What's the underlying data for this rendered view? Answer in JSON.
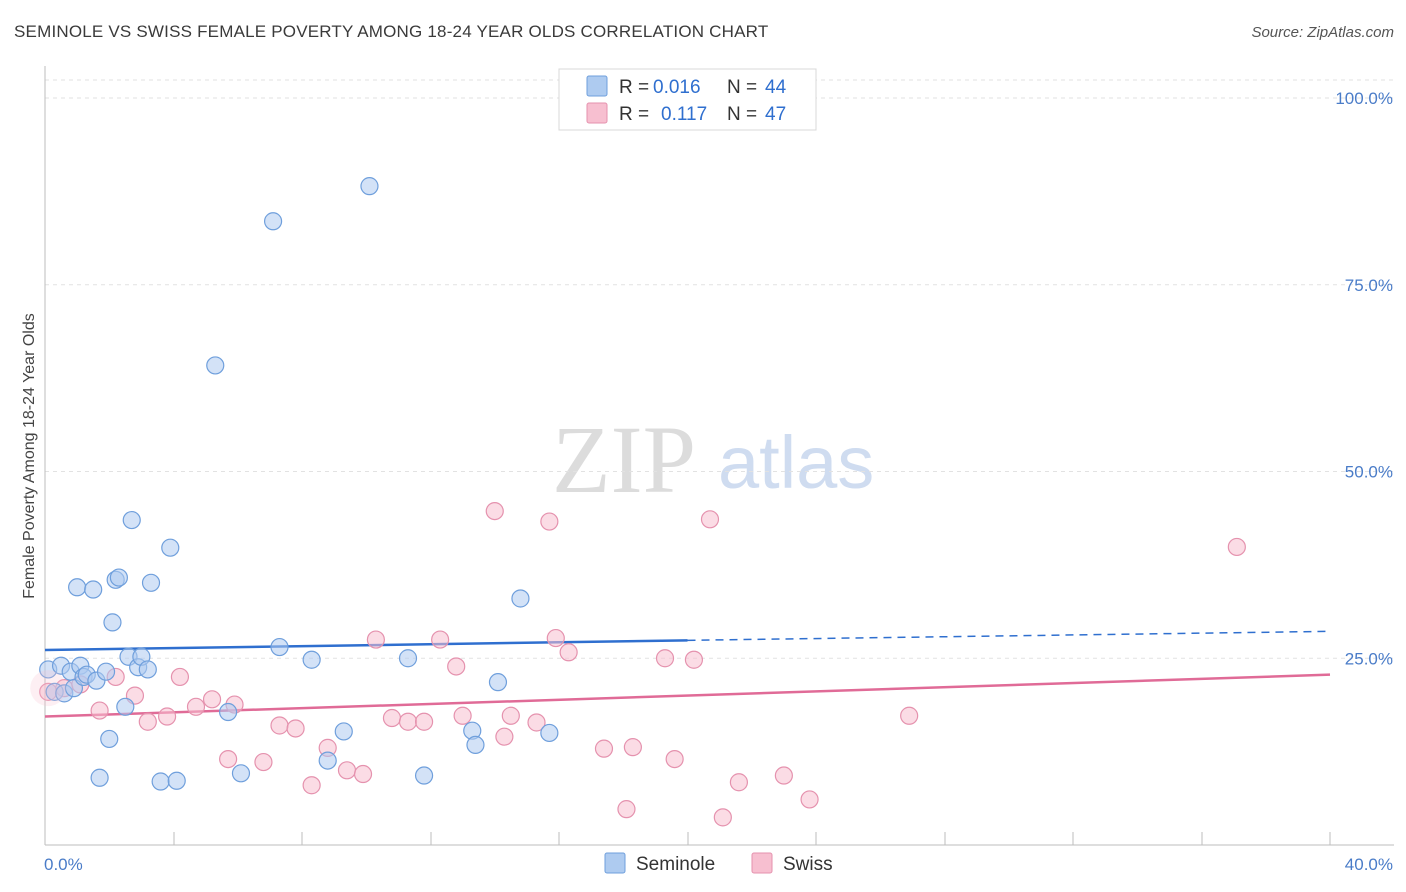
{
  "title": "SEMINOLE VS SWISS FEMALE POVERTY AMONG 18-24 YEAR OLDS CORRELATION CHART",
  "source": "Source: ZipAtlas.com",
  "watermark": {
    "zip": "ZIP",
    "atlas": "atlas"
  },
  "colors": {
    "seminole_fill": "#aecbf0",
    "seminole_stroke": "#6f9fdc",
    "seminole_line": "#2f6fcf",
    "swiss_fill": "#f7bfd0",
    "swiss_stroke": "#e592ae",
    "swiss_line": "#e06b97",
    "tick_text": "#4a7cc8"
  },
  "legend_top": {
    "rows": [
      {
        "r_label": "R =",
        "r_value": "0.016",
        "n_label": "N =",
        "n_value": "44"
      },
      {
        "r_label": "R =",
        "r_value": "0.117",
        "n_label": "N =",
        "n_value": "47"
      }
    ]
  },
  "legend_bottom": {
    "items": [
      "Seminole",
      "Swiss"
    ]
  },
  "chart_data": {
    "type": "scatter",
    "ylabel": "Female Poverty Among 18-24 Year Olds",
    "xlabel": "",
    "xlim": [
      0,
      40
    ],
    "ylim": [
      0,
      105
    ],
    "x_tick_labels": [
      "0.0%",
      "40.0%"
    ],
    "y_tick_labels": [
      "100.0%",
      "75.0%",
      "50.0%",
      "25.0%"
    ],
    "y_ticks": [
      100,
      75,
      50,
      25
    ],
    "grid": true,
    "series": [
      {
        "name": "Seminole",
        "R": 0.016,
        "N": 44,
        "trend": {
          "x0": 0,
          "y0": 26.1,
          "x1": 20,
          "y1": 27.4,
          "dashed_to_x": 40,
          "dashed_to_y": 28.6
        },
        "points": [
          [
            0.1,
            23.5
          ],
          [
            0.3,
            20.5
          ],
          [
            0.5,
            24
          ],
          [
            0.6,
            20.3
          ],
          [
            0.8,
            23.2
          ],
          [
            0.9,
            21
          ],
          [
            1.0,
            34.5
          ],
          [
            1.1,
            24
          ],
          [
            1.2,
            22.5
          ],
          [
            1.3,
            22.8
          ],
          [
            1.5,
            34.2
          ],
          [
            1.6,
            22
          ],
          [
            1.7,
            9
          ],
          [
            1.9,
            23.2
          ],
          [
            2.0,
            14.2
          ],
          [
            2.1,
            29.8
          ],
          [
            2.2,
            35.5
          ],
          [
            2.3,
            35.8
          ],
          [
            2.5,
            18.5
          ],
          [
            2.6,
            25.2
          ],
          [
            2.7,
            43.5
          ],
          [
            2.9,
            23.8
          ],
          [
            3.0,
            25.2
          ],
          [
            3.2,
            23.5
          ],
          [
            3.3,
            35.1
          ],
          [
            3.6,
            8.5
          ],
          [
            3.9,
            39.8
          ],
          [
            4.1,
            8.6
          ],
          [
            5.3,
            64.2
          ],
          [
            5.7,
            17.8
          ],
          [
            6.1,
            9.6
          ],
          [
            7.1,
            83.5
          ],
          [
            7.3,
            26.5
          ],
          [
            8.3,
            24.8
          ],
          [
            8.8,
            11.3
          ],
          [
            9.3,
            15.2
          ],
          [
            10.1,
            88.2
          ],
          [
            11.3,
            25
          ],
          [
            11.8,
            9.3
          ],
          [
            13.3,
            15.3
          ],
          [
            13.4,
            13.4
          ],
          [
            14.1,
            21.8
          ],
          [
            14.8,
            33
          ],
          [
            15.7,
            15
          ]
        ]
      },
      {
        "name": "Swiss",
        "R": 0.117,
        "N": 47,
        "trend": {
          "x0": 0,
          "y0": 17.2,
          "x1": 40,
          "y1": 22.8
        },
        "points": [
          [
            0.1,
            20.5
          ],
          [
            0.6,
            21
          ],
          [
            1.1,
            21.5
          ],
          [
            1.7,
            18
          ],
          [
            2.2,
            22.5
          ],
          [
            2.8,
            20
          ],
          [
            3.2,
            16.5
          ],
          [
            3.8,
            17.2
          ],
          [
            4.2,
            22.5
          ],
          [
            4.7,
            18.5
          ],
          [
            5.2,
            19.5
          ],
          [
            5.7,
            11.5
          ],
          [
            5.9,
            18.8
          ],
          [
            6.8,
            11.1
          ],
          [
            7.3,
            16
          ],
          [
            7.8,
            15.6
          ],
          [
            8.3,
            8
          ],
          [
            8.8,
            13
          ],
          [
            9.4,
            10
          ],
          [
            9.9,
            9.5
          ],
          [
            10.3,
            27.5
          ],
          [
            10.8,
            17
          ],
          [
            11.3,
            16.5
          ],
          [
            11.8,
            16.5
          ],
          [
            12.3,
            27.5
          ],
          [
            12.8,
            23.9
          ],
          [
            13.0,
            17.3
          ],
          [
            14.0,
            44.7
          ],
          [
            14.3,
            14.5
          ],
          [
            14.5,
            17.3
          ],
          [
            15.3,
            16.4
          ],
          [
            15.9,
            27.7
          ],
          [
            15.7,
            43.3
          ],
          [
            16.3,
            25.8
          ],
          [
            17.4,
            12.9
          ],
          [
            18.1,
            4.8
          ],
          [
            18.3,
            13.1
          ],
          [
            19.3,
            25
          ],
          [
            19.6,
            11.5
          ],
          [
            20.2,
            24.8
          ],
          [
            20.7,
            43.6
          ],
          [
            21.1,
            3.7
          ],
          [
            21.6,
            8.4
          ],
          [
            23.0,
            9.3
          ],
          [
            23.8,
            6.1
          ],
          [
            26.9,
            17.3
          ],
          [
            37.1,
            39.9
          ]
        ]
      }
    ]
  }
}
